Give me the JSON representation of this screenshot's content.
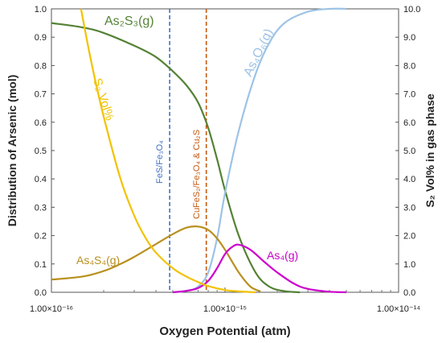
{
  "chart_data": {
    "type": "line",
    "xlabel": "Oxygen Potential (atm)",
    "ylabel": "Distribution of Arsenic (mol)",
    "y2label": "S₂ Vol% in gas phase",
    "x_scale": "log",
    "xlim": [
      1e-16,
      1e-14
    ],
    "ylim": [
      0,
      1.0
    ],
    "y2lim": [
      0,
      10.0
    ],
    "x_ticks": [
      1e-16,
      1e-15,
      1e-14
    ],
    "x_tick_labels": [
      "1.00×10⁻¹⁶",
      "1.00×10⁻¹⁵",
      "1.00×10⁻¹⁴"
    ],
    "y_ticks": [
      0,
      0.1,
      0.2,
      0.3,
      0.4,
      0.5,
      0.6,
      0.7,
      0.8,
      0.9,
      1.0
    ],
    "y_tick_labels": [
      "0.0",
      "0.1",
      "0.2",
      "0.3",
      "0.4",
      "0.5",
      "0.6",
      "0.7",
      "0.8",
      "0.9",
      "1.0"
    ],
    "y2_ticks": [
      0,
      1,
      2,
      3,
      4,
      5,
      6,
      7,
      8,
      9,
      10
    ],
    "y2_tick_labels": [
      "0.0",
      "1.0",
      "2.0",
      "3.0",
      "4.0",
      "5.0",
      "6.0",
      "7.0",
      "8.0",
      "9.0",
      "10.0"
    ],
    "grid": false,
    "series": [
      {
        "name": "As₂S₃(g)",
        "color": "#548235",
        "axis": "left",
        "x": [
          1e-16,
          1.5e-16,
          2e-16,
          3e-16,
          4e-16,
          5e-16,
          6e-16,
          7e-16,
          8e-16,
          9e-16,
          1e-15,
          1.2e-15,
          1.5e-15,
          1.8e-15,
          2.2e-15,
          2.7e-15
        ],
        "y": [
          0.95,
          0.935,
          0.915,
          0.87,
          0.83,
          0.78,
          0.73,
          0.67,
          0.58,
          0.47,
          0.36,
          0.2,
          0.07,
          0.02,
          0.004,
          0.0
        ]
      },
      {
        "name": "As₄O₆(g)",
        "color": "#9DC3E6",
        "axis": "left",
        "x": [
          5e-16,
          6e-16,
          7e-16,
          8e-16,
          9e-16,
          1e-15,
          1.2e-15,
          1.5e-15,
          1.8e-15,
          2.2e-15,
          3e-15,
          4e-15,
          5e-15
        ],
        "y": [
          0.0,
          0.005,
          0.02,
          0.07,
          0.19,
          0.35,
          0.57,
          0.77,
          0.88,
          0.95,
          0.99,
          1.0,
          1.0
        ]
      },
      {
        "name": "As₄S₄(g)",
        "color": "#B8901F",
        "axis": "left",
        "x": [
          1e-16,
          1.5e-16,
          2e-16,
          2.5e-16,
          3e-16,
          4e-16,
          5e-16,
          6e-16,
          7e-16,
          8e-16,
          9e-16,
          1e-15,
          1.2e-15,
          1.4e-15,
          1.6e-15
        ],
        "y": [
          0.045,
          0.055,
          0.075,
          0.1,
          0.125,
          0.17,
          0.205,
          0.228,
          0.232,
          0.22,
          0.19,
          0.15,
          0.07,
          0.02,
          0.003
        ]
      },
      {
        "name": "As₄(g)",
        "color": "#CC00CC",
        "axis": "left",
        "x": [
          5e-16,
          6e-16,
          7e-16,
          8e-16,
          9e-16,
          1e-15,
          1.1e-15,
          1.2e-15,
          1.4e-15,
          1.7e-15,
          2e-15,
          2.5e-15,
          3e-15,
          4e-15,
          5e-15
        ],
        "y": [
          0.0,
          0.005,
          0.015,
          0.04,
          0.085,
          0.135,
          0.16,
          0.168,
          0.15,
          0.105,
          0.07,
          0.03,
          0.012,
          0.002,
          0.0
        ]
      },
      {
        "name": "S₂ Vol%",
        "color": "#F2C200",
        "axis": "right",
        "x": [
          1.48e-16,
          1.7e-16,
          2e-16,
          2.5e-16,
          3e-16,
          3.5e-16,
          4e-16,
          5e-16,
          6e-16,
          7e-16,
          8e-16,
          1e-15,
          1.2e-15,
          1.5e-15
        ],
        "y": [
          10.0,
          8.1,
          6.2,
          4.0,
          2.7,
          1.9,
          1.4,
          0.85,
          0.55,
          0.36,
          0.22,
          0.08,
          0.03,
          0.0
        ]
      }
    ],
    "vlines": [
      {
        "x": 4.8e-16,
        "label": "FeS/Fe₃O₄",
        "color": "#4472C4"
      },
      {
        "x": 7.8e-16,
        "label": "CuFeS₂/Fe₃O₄ & Cu₂S",
        "color": "#C55A11"
      }
    ]
  }
}
